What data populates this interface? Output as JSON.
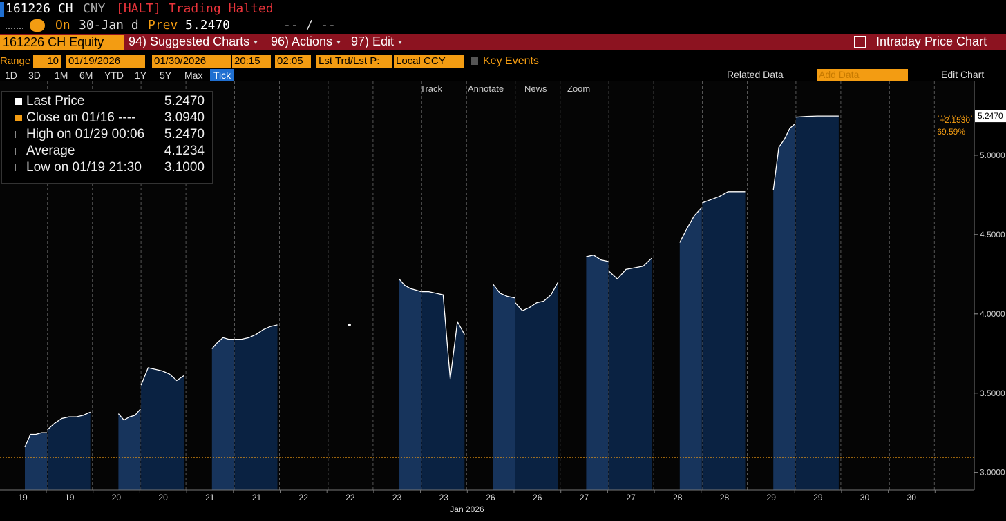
{
  "header": {
    "ticker": "161226 CH",
    "currency": "CNY",
    "status": "[HALT] Trading Halted",
    "on": "On",
    "date": "30-Jan d",
    "prev_label": "Prev",
    "prev": "5.2470",
    "bid_ask": "-- / --"
  },
  "toolbar": {
    "security": "161226 CH Equity",
    "menus": [
      "94) Suggested Charts",
      "96) Actions",
      "97) Edit"
    ],
    "title": "Intraday Price Chart"
  },
  "range": {
    "label": "Range",
    "count": "10",
    "start_date": "01/19/2026",
    "end_date": "01/30/2026",
    "start_time": "20:15",
    "end_time": "02:05",
    "price_type": "Lst Trd/Lst P:",
    "currency": "Local CCY",
    "key_events": "Key Events"
  },
  "periods": [
    "1D",
    "3D",
    "1M",
    "6M",
    "YTD",
    "1Y",
    "5Y",
    "Max",
    "Tick"
  ],
  "chart_tools": {
    "related_data": "Related Data",
    "add_data": "Add Data",
    "edit_chart": "Edit Chart",
    "tools": [
      "Track",
      "Annotate",
      "News",
      "Zoom"
    ]
  },
  "legend": [
    {
      "label": "Last Price",
      "value": "5.2470"
    },
    {
      "label": "Close on 01/16 ----",
      "value": "3.0940"
    },
    {
      "label": "High on 01/29 00:06",
      "value": "5.2470"
    },
    {
      "label": "Average",
      "value": "4.1234"
    },
    {
      "label": "Low on 01/19 21:30",
      "value": "3.1000"
    }
  ],
  "chart_data": {
    "type": "area",
    "categories": [
      "19",
      "19",
      "20",
      "20",
      "21",
      "21",
      "22",
      "22",
      "23",
      "23",
      "26",
      "26",
      "27",
      "27",
      "28",
      "28",
      "29",
      "29",
      "30",
      "30"
    ],
    "x_label": "Jan 2026",
    "values": [
      [
        3.16,
        3.24,
        3.24,
        3.25,
        3.25
      ],
      [
        3.27,
        3.31,
        3.34,
        3.35,
        3.35,
        3.36,
        3.38
      ],
      [
        3.37,
        3.33,
        3.35,
        3.36,
        3.4
      ],
      [
        3.55,
        3.66,
        3.65,
        3.64,
        3.62,
        3.58,
        3.61
      ],
      [
        3.78,
        3.82,
        3.85,
        3.84,
        3.84
      ],
      [
        3.84,
        3.84,
        3.85,
        3.87,
        3.9,
        3.92,
        3.93
      ],
      [],
      [
        3.93
      ],
      [
        4.22,
        4.18,
        4.16,
        4.15,
        4.14
      ],
      [
        4.14,
        4.14,
        4.13,
        4.12,
        3.59,
        3.95,
        3.87
      ],
      [
        4.19,
        4.13,
        4.11,
        4.1
      ],
      [
        4.07,
        4.02,
        4.04,
        4.07,
        4.08,
        4.12,
        4.2
      ],
      [
        4.36,
        4.37,
        4.34,
        4.33
      ],
      [
        4.27,
        4.22,
        4.28,
        4.29,
        4.3,
        4.35
      ],
      [
        4.45,
        4.54,
        4.62,
        4.67
      ],
      [
        4.7,
        4.72,
        4.74,
        4.77,
        4.77,
        4.77
      ],
      [
        4.78,
        5.05,
        5.1,
        5.17,
        5.2
      ],
      [
        5.24,
        5.245,
        5.247,
        5.247,
        5.247
      ],
      [],
      []
    ],
    "color": "#ffffff",
    "fill_colors": [
      "#17345c",
      "#0a2242"
    ],
    "ylim": [
      2.89,
      5.465
    ],
    "yticks": [
      {
        "value": 3,
        "label": "3.0000"
      },
      {
        "value": 3.5,
        "label": "3.5000"
      },
      {
        "value": 4,
        "label": "4.0000"
      },
      {
        "value": 4.5,
        "label": "4.5000"
      },
      {
        "value": 5,
        "label": "5.0000"
      }
    ],
    "close_line": {
      "value": 3.094,
      "color": "#f39c12"
    },
    "last_price": {
      "value": 5.247,
      "label": "5.2470"
    },
    "change": "+2.1530",
    "change_pct": "69.59%"
  }
}
